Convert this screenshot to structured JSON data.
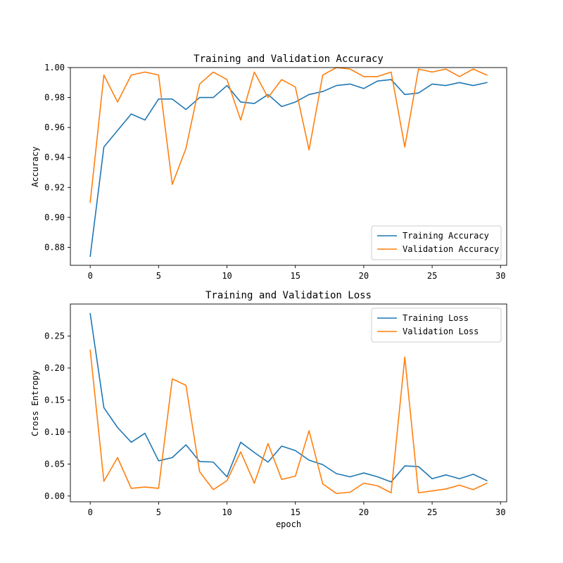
{
  "chart_data": [
    {
      "type": "line",
      "title": "Training and Validation Accuracy",
      "xlabel": "",
      "ylabel": "Accuracy",
      "xlim": [
        -1.45,
        30.45
      ],
      "ylim": [
        0.868,
        1.0
      ],
      "xticks": [
        0,
        5,
        10,
        15,
        20,
        25,
        30
      ],
      "xtick_labels": [
        "0",
        "5",
        "10",
        "15",
        "20",
        "25",
        "30"
      ],
      "yticks": [
        0.88,
        0.9,
        0.92,
        0.94,
        0.96,
        0.98,
        1.0
      ],
      "ytick_labels": [
        "0.88",
        "0.90",
        "0.92",
        "0.94",
        "0.96",
        "0.98",
        "1.00"
      ],
      "legend_position": "lower-right",
      "x": [
        0,
        1,
        2,
        3,
        4,
        5,
        6,
        7,
        8,
        9,
        10,
        11,
        12,
        13,
        14,
        15,
        16,
        17,
        18,
        19,
        20,
        21,
        22,
        23,
        24,
        25,
        26,
        27,
        28,
        29
      ],
      "series": [
        {
          "name": "Training Accuracy",
          "color": "#1f77b4",
          "values": [
            0.874,
            0.947,
            0.958,
            0.969,
            0.965,
            0.979,
            0.979,
            0.972,
            0.98,
            0.98,
            0.988,
            0.977,
            0.976,
            0.982,
            0.974,
            0.977,
            0.982,
            0.984,
            0.988,
            0.989,
            0.986,
            0.991,
            0.992,
            0.982,
            0.983,
            0.989,
            0.988,
            0.99,
            0.988,
            0.99
          ]
        },
        {
          "name": "Validation Accuracy",
          "color": "#ff7f0e",
          "values": [
            0.91,
            0.995,
            0.977,
            0.995,
            0.997,
            0.995,
            0.922,
            0.946,
            0.989,
            0.997,
            0.992,
            0.965,
            0.997,
            0.98,
            0.992,
            0.987,
            0.945,
            0.995,
            1.0,
            0.999,
            0.994,
            0.994,
            0.997,
            0.947,
            0.999,
            0.997,
            0.999,
            0.994,
            0.999,
            0.995
          ]
        }
      ]
    },
    {
      "type": "line",
      "title": "Training and Validation Loss",
      "xlabel": "epoch",
      "ylabel": "Cross Entropy",
      "xlim": [
        -1.45,
        30.45
      ],
      "ylim": [
        -0.009,
        0.3
      ],
      "xticks": [
        0,
        5,
        10,
        15,
        20,
        25,
        30
      ],
      "xtick_labels": [
        "0",
        "5",
        "10",
        "15",
        "20",
        "25",
        "30"
      ],
      "yticks": [
        0.0,
        0.05,
        0.1,
        0.15,
        0.2,
        0.25
      ],
      "ytick_labels": [
        "0.00",
        "0.05",
        "0.10",
        "0.15",
        "0.20",
        "0.25"
      ],
      "legend_position": "upper-right",
      "x": [
        0,
        1,
        2,
        3,
        4,
        5,
        6,
        7,
        8,
        9,
        10,
        11,
        12,
        13,
        14,
        15,
        16,
        17,
        18,
        19,
        20,
        21,
        22,
        23,
        24,
        25,
        26,
        27,
        28,
        29
      ],
      "series": [
        {
          "name": "Training Loss",
          "color": "#1f77b4",
          "values": [
            0.285,
            0.138,
            0.107,
            0.084,
            0.098,
            0.055,
            0.06,
            0.08,
            0.054,
            0.053,
            0.03,
            0.084,
            0.068,
            0.053,
            0.078,
            0.071,
            0.056,
            0.049,
            0.035,
            0.03,
            0.036,
            0.03,
            0.022,
            0.047,
            0.046,
            0.027,
            0.033,
            0.027,
            0.034,
            0.024
          ]
        },
        {
          "name": "Validation Loss",
          "color": "#ff7f0e",
          "values": [
            0.228,
            0.023,
            0.06,
            0.012,
            0.014,
            0.012,
            0.183,
            0.173,
            0.038,
            0.01,
            0.024,
            0.069,
            0.02,
            0.082,
            0.026,
            0.031,
            0.102,
            0.019,
            0.004,
            0.006,
            0.02,
            0.016,
            0.005,
            0.217,
            0.005,
            0.008,
            0.011,
            0.017,
            0.01,
            0.02
          ]
        }
      ]
    }
  ]
}
